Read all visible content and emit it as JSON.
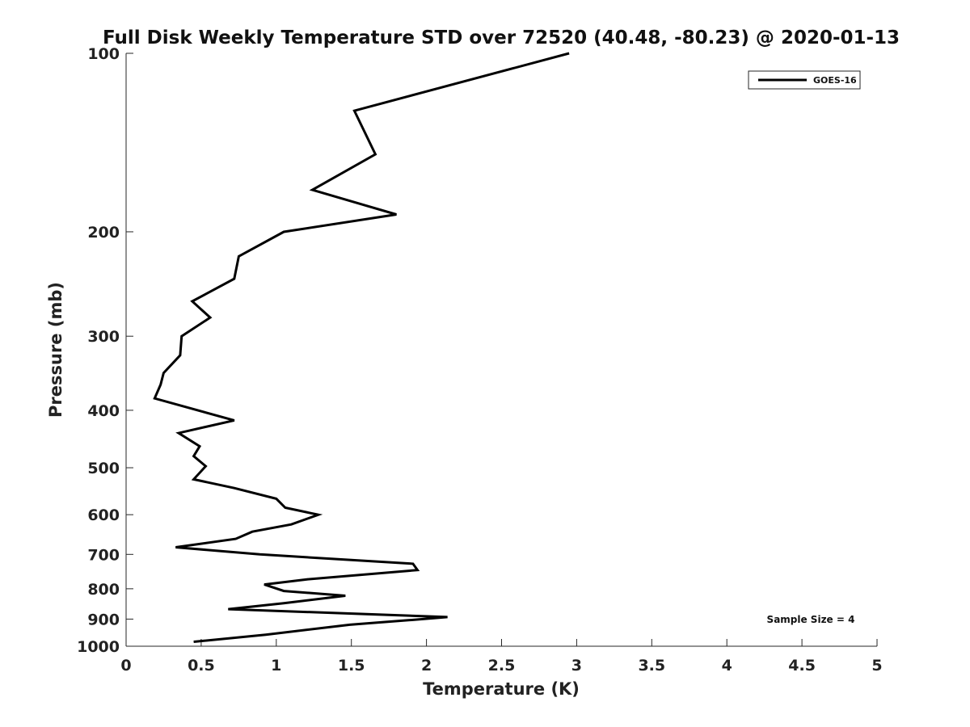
{
  "chart_data": {
    "type": "line",
    "title": "Full Disk Weekly Temperature STD over 72520 (40.48, -80.23) @ 2020-01-13",
    "xlabel": "Temperature (K)",
    "ylabel": "Pressure (mb)",
    "xlim": [
      0,
      5
    ],
    "ylim": [
      100,
      1000
    ],
    "y_scale": "log",
    "y_reversed": true,
    "xticks": [
      0,
      0.5,
      1,
      1.5,
      2,
      2.5,
      3,
      3.5,
      4,
      4.5,
      5
    ],
    "xtick_labels": [
      "0",
      "0.5",
      "1",
      "1.5",
      "2",
      "2.5",
      "3",
      "3.5",
      "4",
      "4.5",
      "5"
    ],
    "yticks": [
      100,
      200,
      300,
      400,
      500,
      600,
      700,
      800,
      900,
      1000
    ],
    "ytick_labels": [
      "100",
      "200",
      "300",
      "400",
      "500",
      "600",
      "700",
      "800",
      "900",
      "1000"
    ],
    "grid": false,
    "legend": "top-right",
    "annotation": "Sample Size = 4",
    "series": [
      {
        "name": "GOES-16",
        "color": "#000000",
        "points": [
          [
            2.95,
            100
          ],
          [
            1.52,
            125
          ],
          [
            1.66,
            148
          ],
          [
            1.24,
            170
          ],
          [
            1.8,
            187
          ],
          [
            1.05,
            200
          ],
          [
            0.75,
            220
          ],
          [
            0.72,
            240
          ],
          [
            0.44,
            262
          ],
          [
            0.56,
            279
          ],
          [
            0.37,
            300
          ],
          [
            0.36,
            323
          ],
          [
            0.25,
            346
          ],
          [
            0.23,
            362
          ],
          [
            0.19,
            382
          ],
          [
            0.72,
            416
          ],
          [
            0.35,
            437
          ],
          [
            0.49,
            460
          ],
          [
            0.45,
            478
          ],
          [
            0.53,
            497
          ],
          [
            0.45,
            523
          ],
          [
            0.72,
            541
          ],
          [
            1.0,
            564
          ],
          [
            1.06,
            584
          ],
          [
            1.28,
            600
          ],
          [
            1.1,
            623
          ],
          [
            0.84,
            641
          ],
          [
            0.73,
            659
          ],
          [
            0.33,
            681
          ],
          [
            0.89,
            700
          ],
          [
            1.91,
            726
          ],
          [
            1.94,
            744
          ],
          [
            1.21,
            771
          ],
          [
            0.92,
            787
          ],
          [
            1.05,
            807
          ],
          [
            1.46,
            822
          ],
          [
            1.05,
            846
          ],
          [
            0.68,
            866
          ],
          [
            2.14,
            893
          ],
          [
            1.88,
            904
          ],
          [
            1.49,
            920
          ],
          [
            0.93,
            956
          ],
          [
            0.45,
            983
          ]
        ]
      }
    ]
  }
}
